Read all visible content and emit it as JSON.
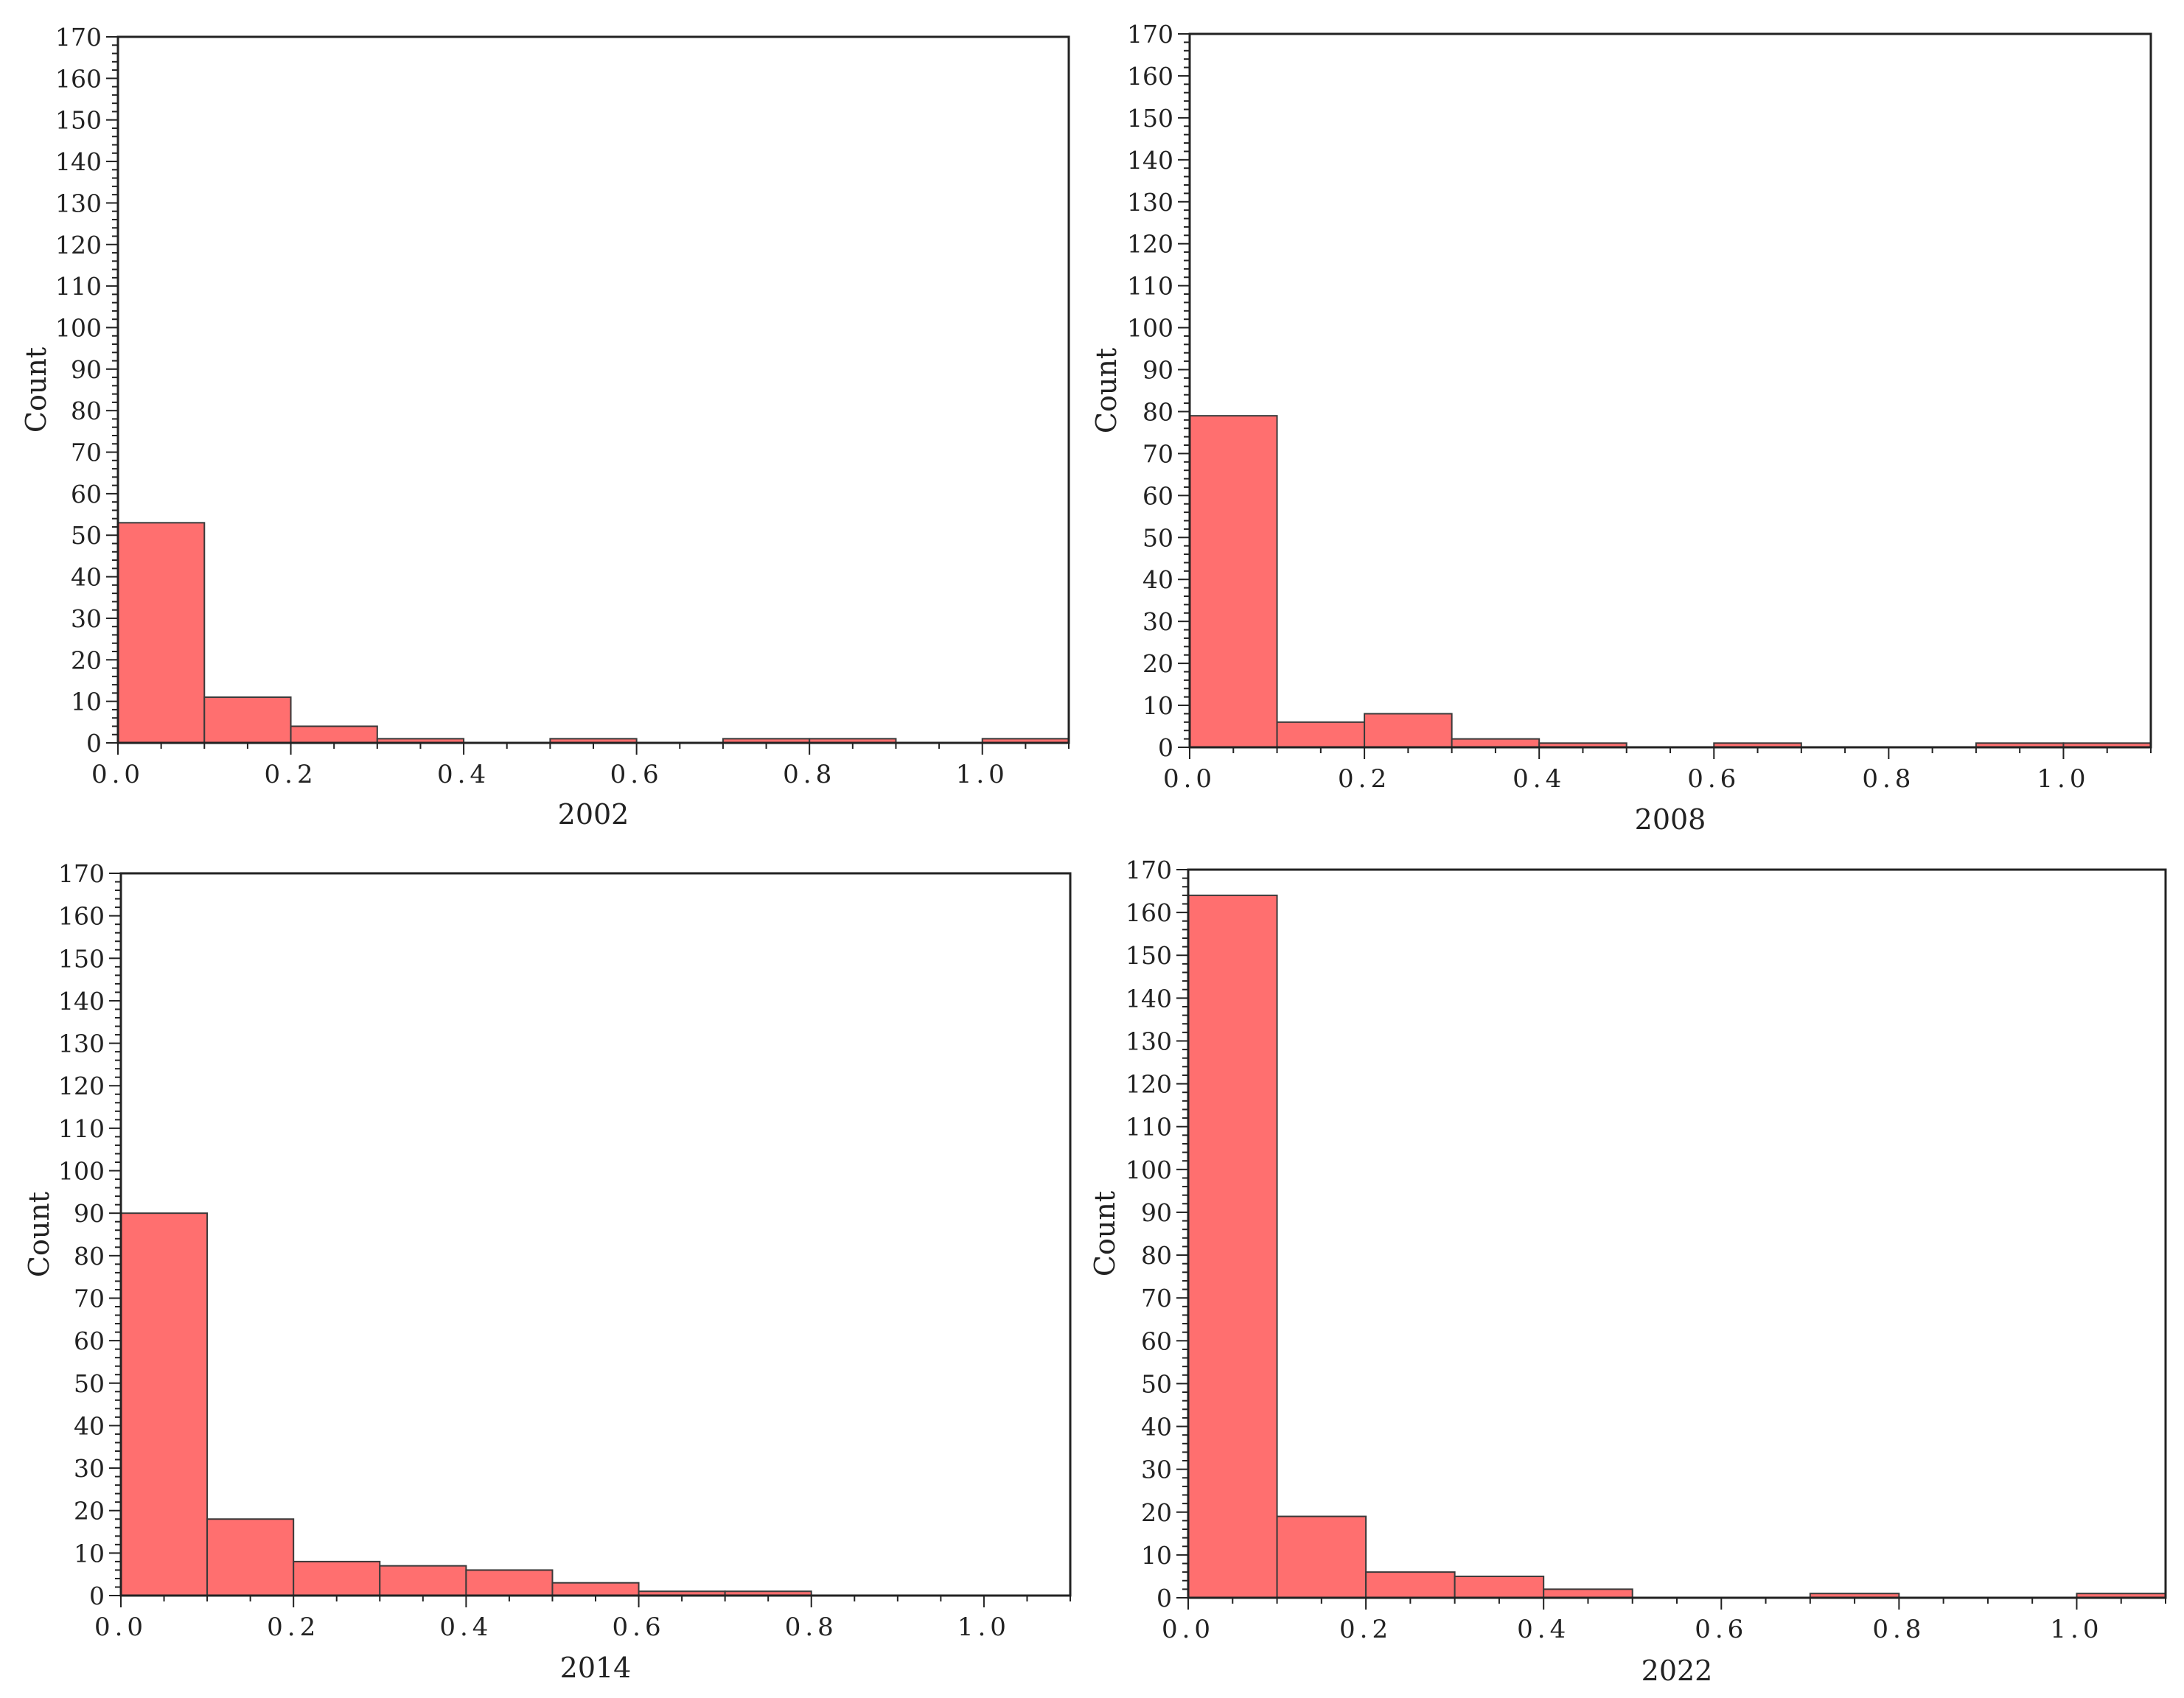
{
  "figure": {
    "bar_fill": "#FF6F6F",
    "bar_stroke": "#3a3a3a",
    "axis_color": "#222222"
  },
  "chart_data": [
    {
      "type": "bar",
      "xlabel": "2002",
      "ylabel": "Count",
      "xlim": [
        0,
        1.1
      ],
      "ylim": [
        0,
        170
      ],
      "bin_width": 0.1,
      "bins": [
        0,
        0.1,
        0.2,
        0.3,
        0.4,
        0.5,
        0.6,
        0.7,
        0.8,
        0.9,
        1.0
      ],
      "values": [
        53,
        11,
        4,
        1,
        0,
        1,
        0,
        1,
        1,
        0,
        1
      ],
      "x_ticks": [
        "0.0",
        "0.2",
        "0.4",
        "0.6",
        "0.8",
        "1.0"
      ],
      "y_ticks": [
        "0",
        "10",
        "20",
        "30",
        "40",
        "50",
        "60",
        "70",
        "80",
        "90",
        "100",
        "110",
        "120",
        "130",
        "140",
        "150",
        "160",
        "170"
      ],
      "grid": false
    },
    {
      "type": "bar",
      "xlabel": "2008",
      "ylabel": "Count",
      "xlim": [
        0,
        1.1
      ],
      "ylim": [
        0,
        170
      ],
      "bin_width": 0.1,
      "bins": [
        0,
        0.1,
        0.2,
        0.3,
        0.4,
        0.5,
        0.6,
        0.7,
        0.8,
        0.9,
        1.0
      ],
      "values": [
        79,
        6,
        8,
        2,
        1,
        0,
        1,
        0,
        0,
        1,
        1
      ],
      "x_ticks": [
        "0.0",
        "0.2",
        "0.4",
        "0.6",
        "0.8",
        "1.0"
      ],
      "y_ticks": [
        "0",
        "10",
        "20",
        "30",
        "40",
        "50",
        "60",
        "70",
        "80",
        "90",
        "100",
        "110",
        "120",
        "130",
        "140",
        "150",
        "160",
        "170"
      ],
      "grid": false
    },
    {
      "type": "bar",
      "xlabel": "2014",
      "ylabel": "Count",
      "xlim": [
        0,
        1.1
      ],
      "ylim": [
        0,
        170
      ],
      "bin_width": 0.1,
      "bins": [
        0,
        0.1,
        0.2,
        0.3,
        0.4,
        0.5,
        0.6,
        0.7,
        0.8,
        0.9,
        1.0
      ],
      "values": [
        90,
        18,
        8,
        7,
        6,
        3,
        1,
        1,
        0,
        0,
        0
      ],
      "x_ticks": [
        "0.0",
        "0.2",
        "0.4",
        "0.6",
        "0.8",
        "1.0"
      ],
      "y_ticks": [
        "0",
        "10",
        "20",
        "30",
        "40",
        "50",
        "60",
        "70",
        "80",
        "90",
        "100",
        "110",
        "120",
        "130",
        "140",
        "150",
        "160",
        "170"
      ],
      "grid": false
    },
    {
      "type": "bar",
      "xlabel": "2022",
      "ylabel": "Count",
      "xlim": [
        0,
        1.1
      ],
      "ylim": [
        0,
        170
      ],
      "bin_width": 0.1,
      "bins": [
        0,
        0.1,
        0.2,
        0.3,
        0.4,
        0.5,
        0.6,
        0.7,
        0.8,
        0.9,
        1.0
      ],
      "values": [
        164,
        19,
        6,
        5,
        2,
        0,
        0,
        1,
        0,
        0,
        1
      ],
      "x_ticks": [
        "0.0",
        "0.2",
        "0.4",
        "0.6",
        "0.8",
        "1.0"
      ],
      "y_ticks": [
        "0",
        "10",
        "20",
        "30",
        "40",
        "50",
        "60",
        "70",
        "80",
        "90",
        "100",
        "110",
        "120",
        "130",
        "140",
        "150",
        "160",
        "170"
      ],
      "grid": false
    }
  ]
}
